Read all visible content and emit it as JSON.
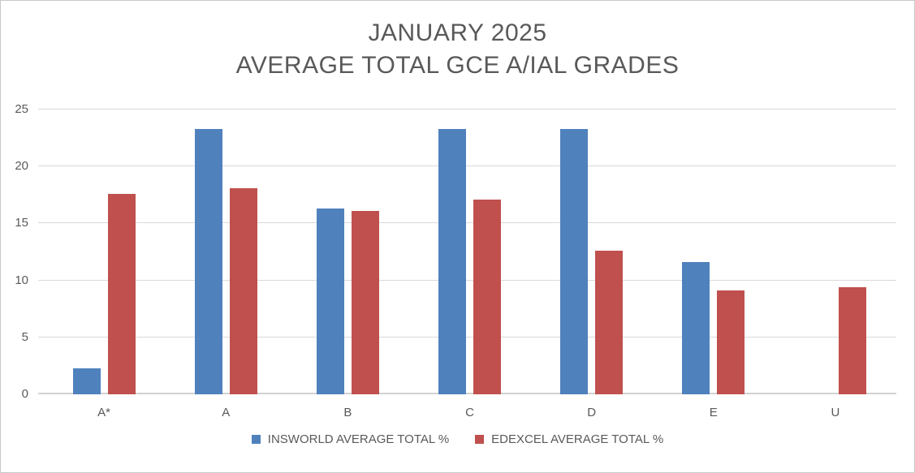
{
  "chart_data": {
    "type": "bar",
    "title": "JANUARY 2025",
    "subtitle": "AVERAGE TOTAL GCE A/IAL GRADES",
    "categories": [
      "A*",
      "A",
      "B",
      "C",
      "D",
      "E",
      "U"
    ],
    "series": [
      {
        "name": "INSWORLD AVERAGE TOTAL %",
        "color": "#4F81BD",
        "values": [
          2.3,
          23.3,
          16.3,
          23.3,
          23.3,
          11.6,
          0
        ]
      },
      {
        "name": "EDEXCEL AVERAGE TOTAL %",
        "color": "#C0504D",
        "values": [
          17.6,
          18.1,
          16.1,
          17.1,
          12.6,
          9.1,
          9.4
        ]
      }
    ],
    "xlabel": "",
    "ylabel": "",
    "ylim": [
      0,
      25
    ],
    "yticks": [
      0,
      5,
      10,
      15,
      20,
      25
    ],
    "grid": true,
    "legend_position": "bottom"
  },
  "colors": {
    "text": "#595959",
    "gridline": "#D9D9D9",
    "axis_line": "#D2D2D2",
    "frame_border": "#C9C9C9",
    "background": "#FFFFFF"
  }
}
